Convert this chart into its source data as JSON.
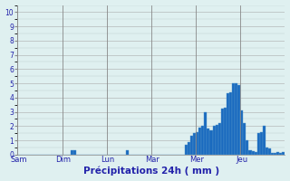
{
  "xlabel": "Précipitations 24h ( mm )",
  "ylim": [
    0,
    10.5
  ],
  "yticks": [
    0,
    1,
    2,
    3,
    4,
    5,
    6,
    7,
    8,
    9,
    10
  ],
  "background_color": "#dff0f0",
  "bar_color": "#1a6abf",
  "bar_edge_color": "#5599cc",
  "day_labels": [
    "Sam",
    "Dim",
    "Lun",
    "Mar",
    "Mer",
    "Jeu"
  ],
  "bars_per_day": 16,
  "values": [
    0,
    0,
    0,
    0,
    0,
    0,
    0,
    0,
    0,
    0,
    0,
    0,
    0,
    0,
    0,
    0,
    0,
    0,
    0,
    0.3,
    0.3,
    0,
    0,
    0,
    0,
    0,
    0,
    0,
    0,
    0,
    0,
    0,
    0,
    0,
    0,
    0,
    0,
    0,
    0,
    0.3,
    0,
    0,
    0,
    0,
    0,
    0,
    0,
    0,
    0,
    0,
    0,
    0,
    0,
    0,
    0,
    0,
    0,
    0,
    0,
    0,
    0.7,
    0.9,
    1.3,
    1.5,
    1.6,
    1.9,
    2.0,
    3.0,
    1.8,
    1.7,
    2.0,
    2.1,
    2.2,
    3.2,
    3.3,
    4.3,
    4.4,
    5.0,
    5.0,
    4.9,
    3.1,
    2.2,
    1.0,
    0.3,
    0.25,
    0.2,
    1.5,
    1.6,
    2.0,
    0.5,
    0.4,
    0.1,
    0.1,
    0.15,
    0.1,
    0.15
  ]
}
